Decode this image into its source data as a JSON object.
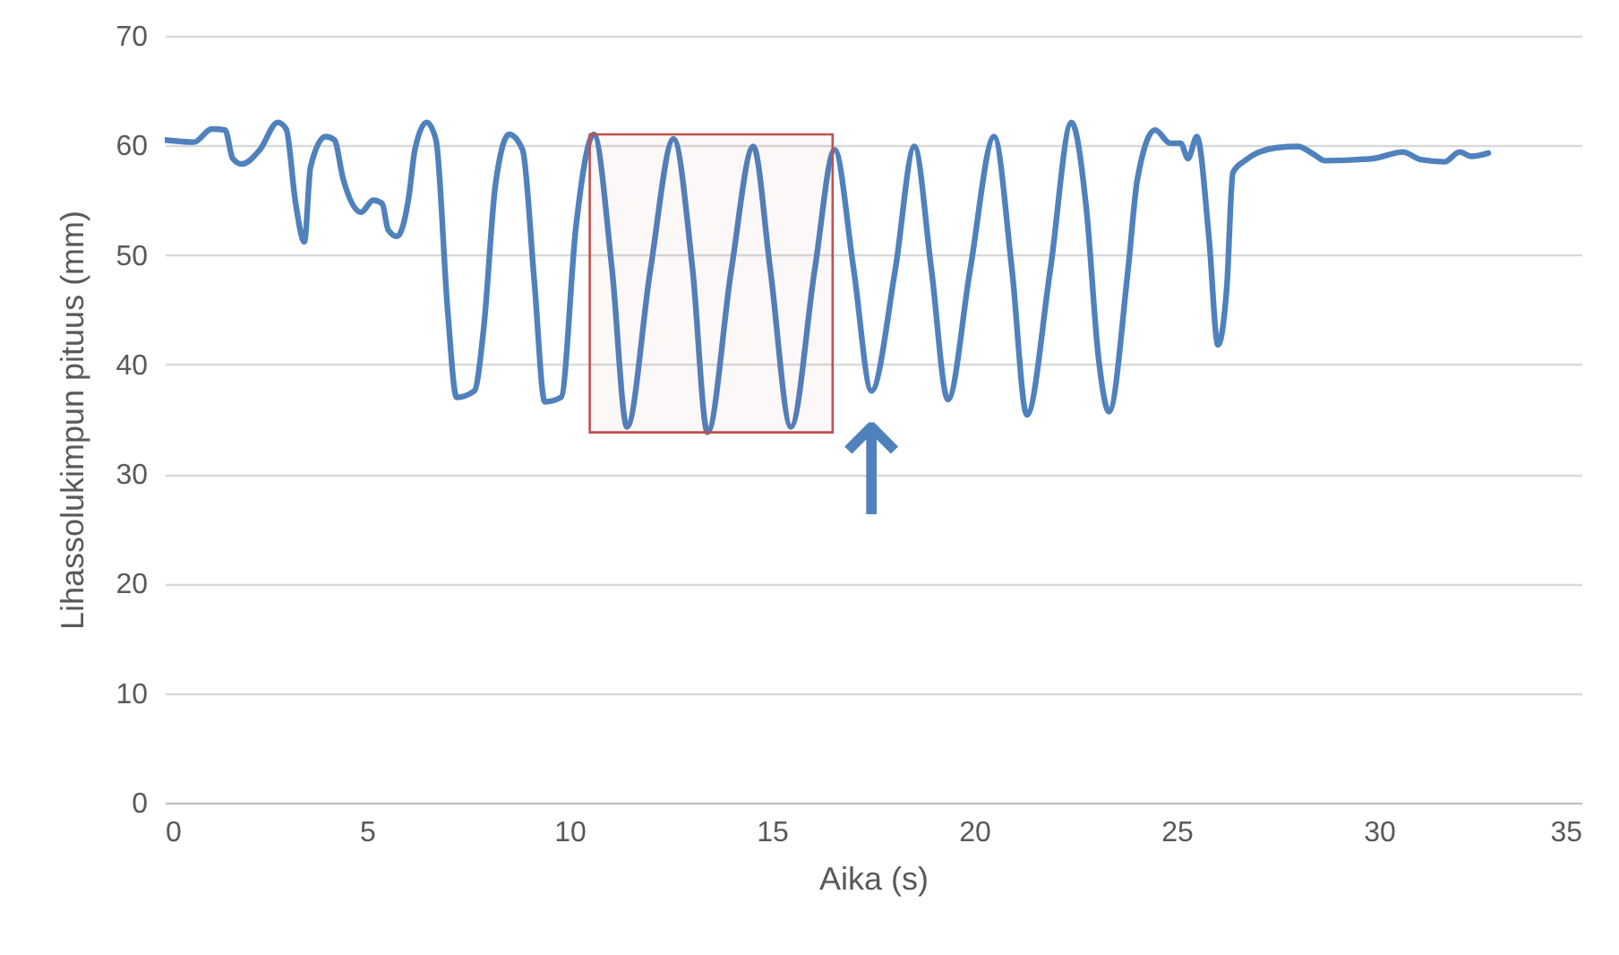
{
  "chart_data": {
    "type": "line",
    "xlabel": "Aika (s)",
    "ylabel": "Lihassolukimpun pituus (mm)",
    "xlim": [
      0,
      35
    ],
    "xticks": [
      0,
      5,
      10,
      15,
      20,
      25,
      30,
      35
    ],
    "ylim": [
      0,
      70
    ],
    "yticks": [
      0,
      10,
      20,
      30,
      40,
      50,
      60,
      70
    ],
    "grid": "y",
    "series": [
      {
        "color": "#4f81bd",
        "x": [
          0,
          0.72,
          1.16,
          1.49,
          1.68,
          1.9,
          2.35,
          2.79,
          3.0,
          3.23,
          3.45,
          3.6,
          3.97,
          4.19,
          4.41,
          4.85,
          5.15,
          5.37,
          5.52,
          5.74,
          6.03,
          6.18,
          6.47,
          6.7,
          6.99,
          7.21,
          7.65,
          7.88,
          8.17,
          8.51,
          8.84,
          9.13,
          9.39,
          9.79,
          10.16,
          10.6,
          11.05,
          11.42,
          12.0,
          12.57,
          13.04,
          13.41,
          14.0,
          14.54,
          14.96,
          15.47,
          16.06,
          16.55,
          17.02,
          17.46,
          18.05,
          18.52,
          18.94,
          19.35,
          19.9,
          20.49,
          20.93,
          21.3,
          21.88,
          22.4,
          22.77,
          23.07,
          23.33,
          23.8,
          24.03,
          24.47,
          24.84,
          25.1,
          25.28,
          25.5,
          25.8,
          26.02,
          26.24,
          26.39,
          26.68,
          27.49,
          28.0,
          28.38,
          28.67,
          29.85,
          30.59,
          31.03,
          31.62,
          31.99,
          32.28,
          32.7
        ],
        "values": [
          60.5,
          60.3,
          61.5,
          61.4,
          58.8,
          58.3,
          59.6,
          62.1,
          61.5,
          54.8,
          51.2,
          58.0,
          60.8,
          60.5,
          56.9,
          53.9,
          55.0,
          54.7,
          52.3,
          51.7,
          55.3,
          59.6,
          62.1,
          60.5,
          44.9,
          37.0,
          37.6,
          43.3,
          56.4,
          61.0,
          59.6,
          47.6,
          36.6,
          37.0,
          52.6,
          61.0,
          48.7,
          34.3,
          48.7,
          60.6,
          48.7,
          33.8,
          48.7,
          59.9,
          48.7,
          34.3,
          48.7,
          59.6,
          48.7,
          37.6,
          48.7,
          59.9,
          48.7,
          36.8,
          48.7,
          60.8,
          48.7,
          35.4,
          48.7,
          62.1,
          54.2,
          40.6,
          35.7,
          48.7,
          56.9,
          61.4,
          60.2,
          60.2,
          58.8,
          60.8,
          51.5,
          41.8,
          47.1,
          57.5,
          58.6,
          59.8,
          59.9,
          59.2,
          58.6,
          58.8,
          59.4,
          58.7,
          58.5,
          59.4,
          59.0,
          59.3
        ]
      }
    ],
    "bands": [
      {
        "axis": "x",
        "from": 10.5,
        "to": 16.5,
        "color": "#c0504d"
      }
    ],
    "annotations": [
      {
        "text": "↑",
        "x": 17.46,
        "y": 37.6
      }
    ]
  }
}
